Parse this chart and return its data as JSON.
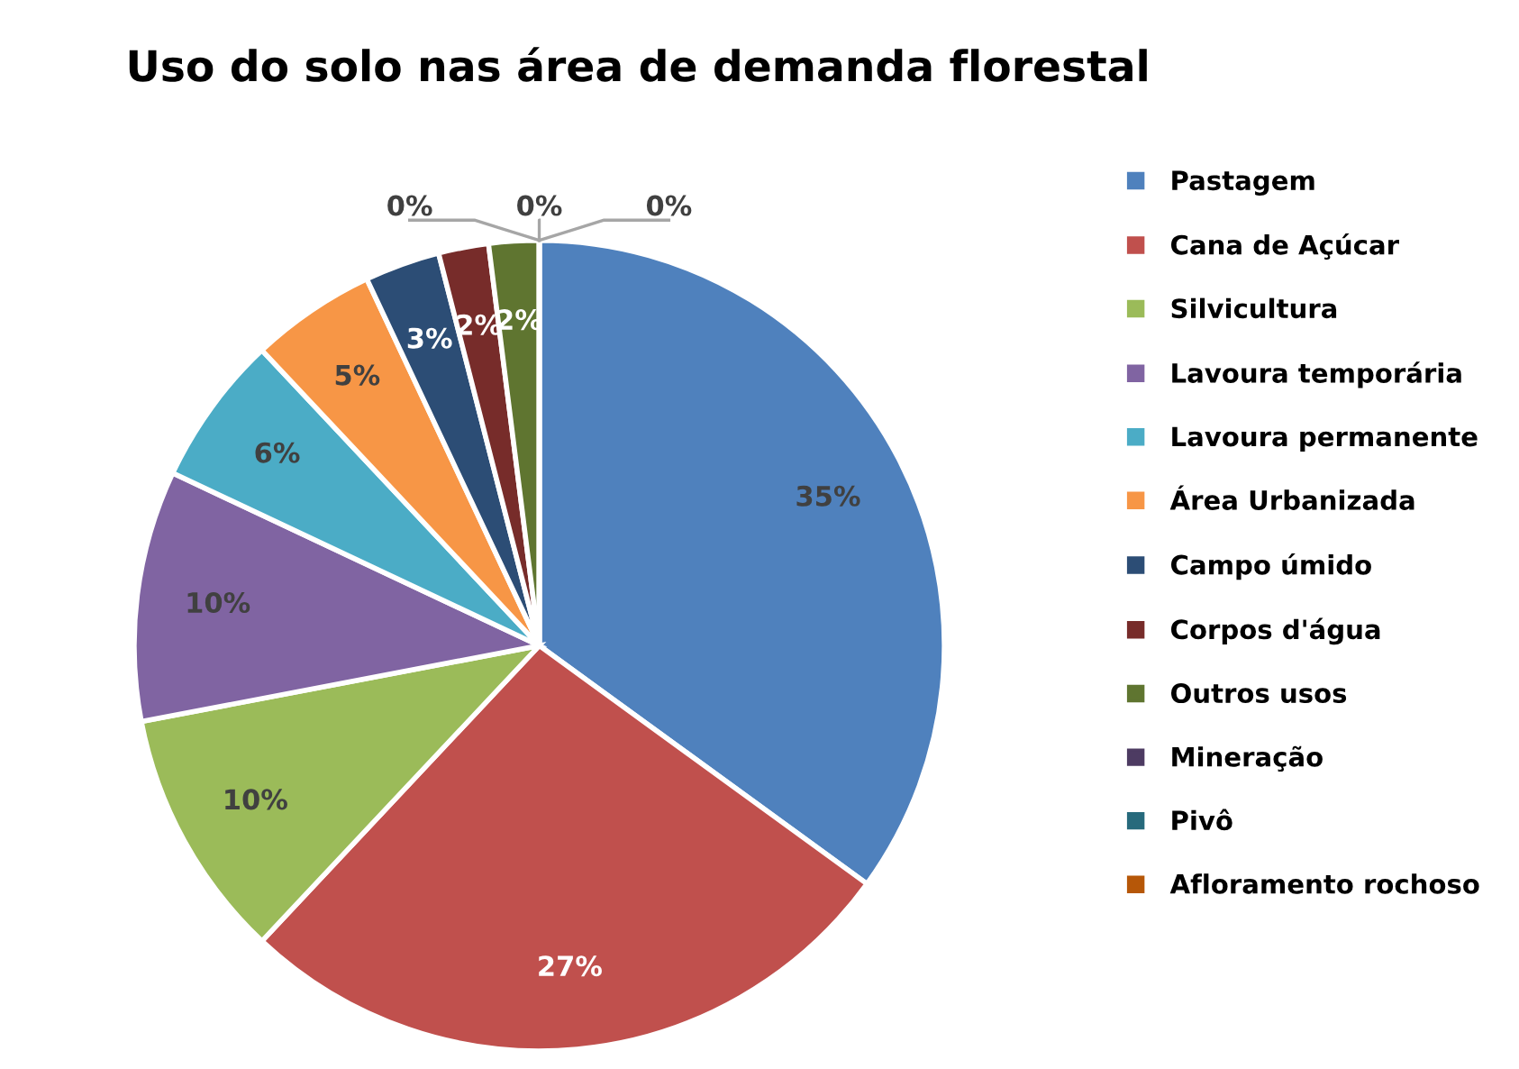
{
  "chart_data": {
    "type": "pie",
    "title": "Uso do solo nas área de demanda florestal",
    "categories": [
      "Pastagem",
      "Cana de Açúcar",
      "Silvicultura",
      "Lavoura temporária",
      "Lavoura permanente",
      "Área Urbanizada",
      "Campo úmido",
      "Corpos d'água",
      "Outros usos",
      "Mineração",
      "Pivô",
      "Afloramento rochoso"
    ],
    "values": [
      35,
      27,
      10,
      10,
      6,
      5,
      3,
      2,
      2,
      0,
      0,
      0
    ],
    "colors": [
      "#4f81bd",
      "#c0504d",
      "#9bbb59",
      "#8064a2",
      "#4bacc6",
      "#f79646",
      "#2c4d75",
      "#772c2a",
      "#5f7530",
      "#4d3b62",
      "#276a7c",
      "#b65708"
    ],
    "value_labels": [
      "35%",
      "27%",
      "10%",
      "10%",
      "6%",
      "5%",
      "3%",
      "2%",
      "2%",
      "0%",
      "0%",
      "0%"
    ],
    "legend": "right"
  }
}
